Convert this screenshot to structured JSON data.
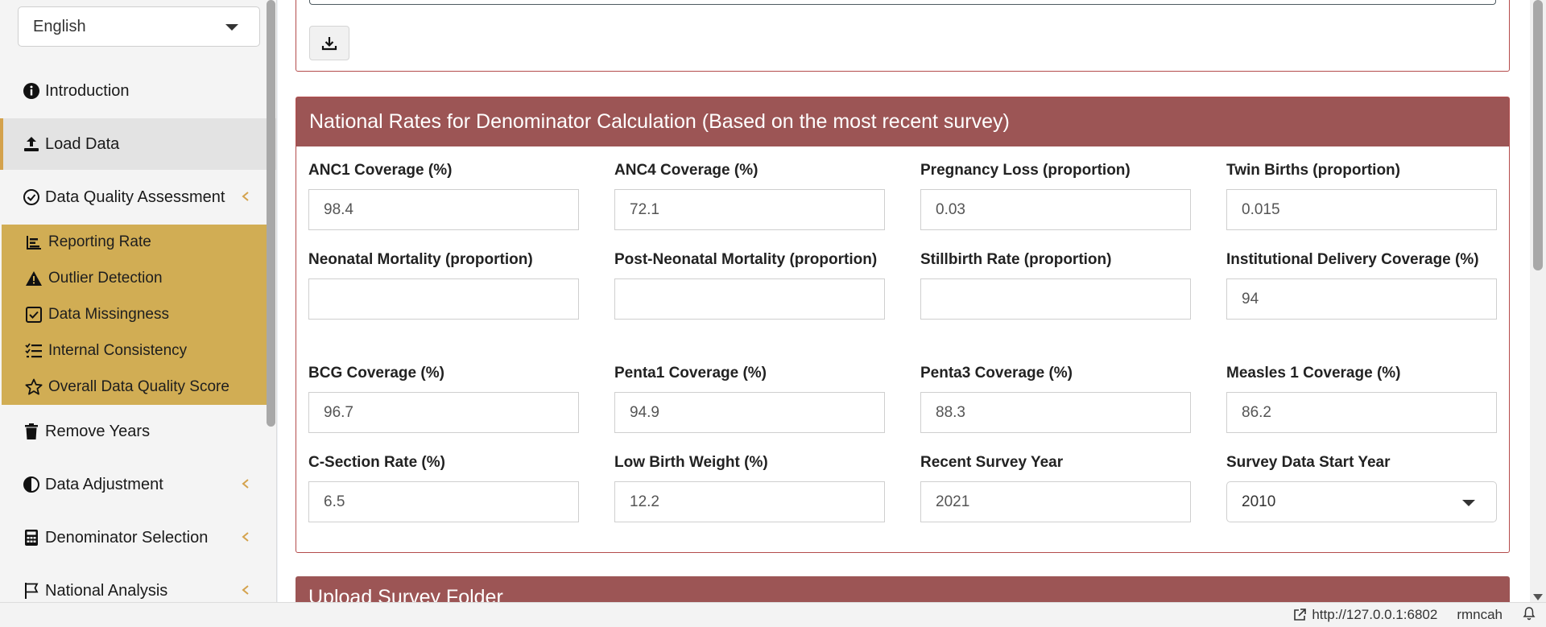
{
  "sidebar": {
    "language": "English",
    "items": [
      {
        "label": "Introduction",
        "icon": "info-icon"
      },
      {
        "label": "Load Data",
        "icon": "upload-icon"
      },
      {
        "label": "Data Quality Assessment",
        "icon": "check-circle-icon"
      },
      {
        "label": "Remove Years",
        "icon": "trash-icon"
      },
      {
        "label": "Data Adjustment",
        "icon": "half-circle-icon"
      },
      {
        "label": "Denominator Selection",
        "icon": "calculator-icon"
      },
      {
        "label": "National Analysis",
        "icon": "flag-icon"
      }
    ],
    "submenu": [
      {
        "label": "Reporting Rate",
        "icon": "bar-chart-icon"
      },
      {
        "label": "Outlier Detection",
        "icon": "warning-icon"
      },
      {
        "label": "Data Missingness",
        "icon": "check-square-icon"
      },
      {
        "label": "Internal Consistency",
        "icon": "list-check-icon"
      },
      {
        "label": "Overall Data Quality Score",
        "icon": "star-icon"
      }
    ]
  },
  "panel": {
    "title": "National Rates for Denominator Calculation (Based on the most recent survey)",
    "fields": [
      {
        "label": "ANC1 Coverage (%)",
        "value": "98.4"
      },
      {
        "label": "ANC4 Coverage (%)",
        "value": "72.1"
      },
      {
        "label": "Pregnancy Loss (proportion)",
        "value": "0.03"
      },
      {
        "label": "Twin Births (proportion)",
        "value": "0.015"
      },
      {
        "label": "Neonatal Mortality (proportion)",
        "value": ""
      },
      {
        "label": "Post-Neonatal Mortality (proportion)",
        "value": ""
      },
      {
        "label": "Stillbirth Rate (proportion)",
        "value": ""
      },
      {
        "label": "Institutional Delivery Coverage (%)",
        "value": "94"
      },
      {
        "label": "BCG Coverage (%)",
        "value": "96.7"
      },
      {
        "label": "Penta1 Coverage (%)",
        "value": "94.9"
      },
      {
        "label": "Penta3 Coverage (%)",
        "value": "88.3"
      },
      {
        "label": "Measles 1 Coverage (%)",
        "value": "86.2"
      },
      {
        "label": "C-Section Rate (%)",
        "value": "6.5"
      },
      {
        "label": "Low Birth Weight (%)",
        "value": "12.2"
      },
      {
        "label": "Recent Survey Year",
        "value": "2021"
      },
      {
        "label": "Survey Data Start Year",
        "value": "2010"
      }
    ]
  },
  "panel2": {
    "title": "Upload Survey Folder"
  },
  "statusbar": {
    "url": "http://127.0.0.1:6802",
    "app": "rmncah"
  },
  "colors": {
    "accent": "#d1ad54",
    "panel_header": "#9c5555",
    "panel_border": "#b44b4b"
  }
}
